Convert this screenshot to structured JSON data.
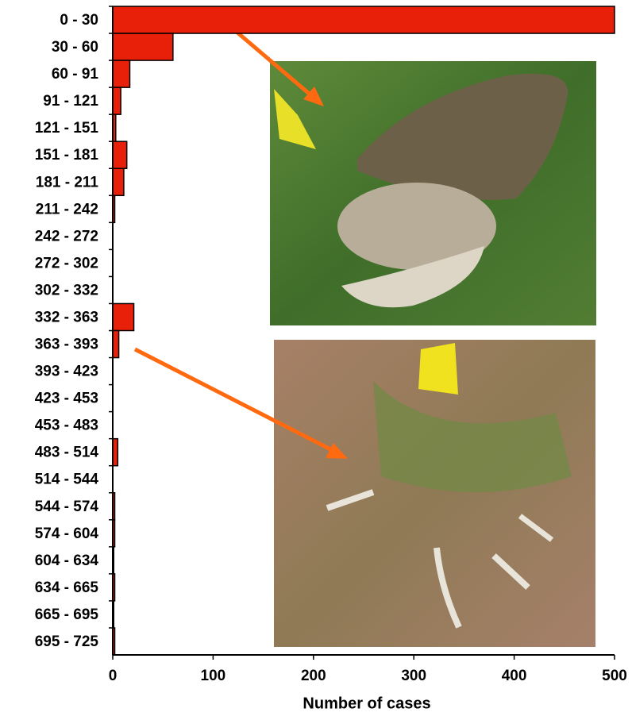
{
  "chart_data": {
    "type": "bar",
    "orientation": "horizontal",
    "x_label": "Number of cases",
    "categories": [
      "0 - 30",
      "30 - 60",
      "60 - 91",
      "91 - 121",
      "121 - 151",
      "151 - 181",
      "181 - 211",
      "211 - 242",
      "242 - 272",
      "272 - 302",
      "302 - 332",
      "332 - 363",
      "363 - 393",
      "393 - 423",
      "423 - 453",
      "453 - 483",
      "483 - 514",
      "514 - 544",
      "544 - 574",
      "574 - 604",
      "604 - 634",
      "634 - 665",
      "665 - 695",
      "695 - 725"
    ],
    "values": [
      500,
      60,
      17,
      8,
      3,
      14,
      11,
      2,
      0,
      0,
      0,
      21,
      6,
      0,
      0,
      0,
      5,
      0,
      2,
      2,
      1,
      2,
      1,
      2
    ],
    "color": "#e8200a",
    "xlim": [
      0,
      500
    ],
    "xticks": [
      0,
      100,
      200,
      300,
      400,
      500
    ]
  }
}
